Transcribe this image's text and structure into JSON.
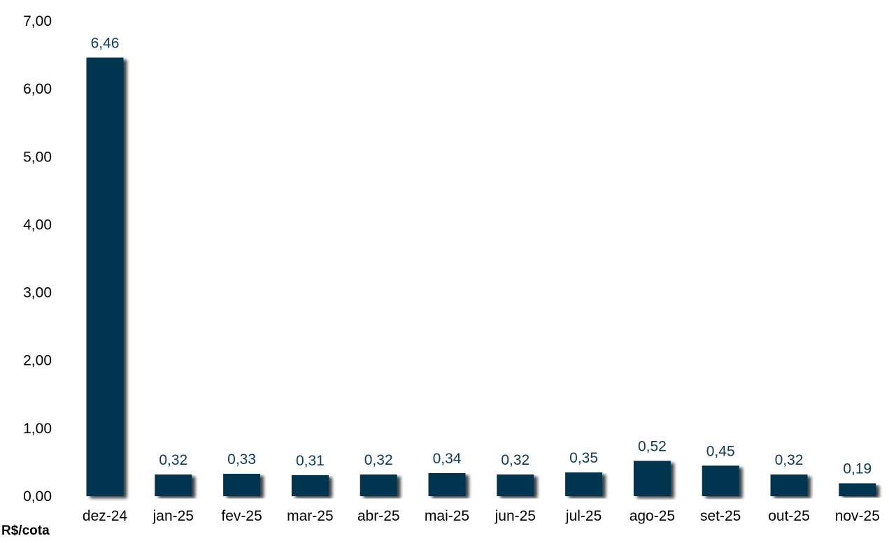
{
  "chart_data": {
    "type": "bar",
    "categories": [
      "dez-24",
      "jan-25",
      "fev-25",
      "mar-25",
      "abr-25",
      "mai-25",
      "jun-25",
      "jul-25",
      "ago-25",
      "set-25",
      "out-25",
      "nov-25"
    ],
    "values": [
      6.46,
      0.32,
      0.33,
      0.31,
      0.32,
      0.34,
      0.32,
      0.35,
      0.52,
      0.45,
      0.32,
      0.19
    ],
    "data_labels": [
      "6,46",
      "0,32",
      "0,33",
      "0,31",
      "0,32",
      "0,34",
      "0,32",
      "0,35",
      "0,52",
      "0,45",
      "0,32",
      "0,19"
    ],
    "yticks": [
      0,
      1,
      2,
      3,
      4,
      5,
      6,
      7
    ],
    "ytick_labels": [
      "0,00",
      "1,00",
      "2,00",
      "3,00",
      "4,00",
      "5,00",
      "6,00",
      "7,00"
    ],
    "ylim": [
      0,
      7
    ],
    "ylabel": "R$/cota",
    "grid": false,
    "colors": {
      "bar": "#04354f",
      "label": "#0d3a57"
    }
  }
}
